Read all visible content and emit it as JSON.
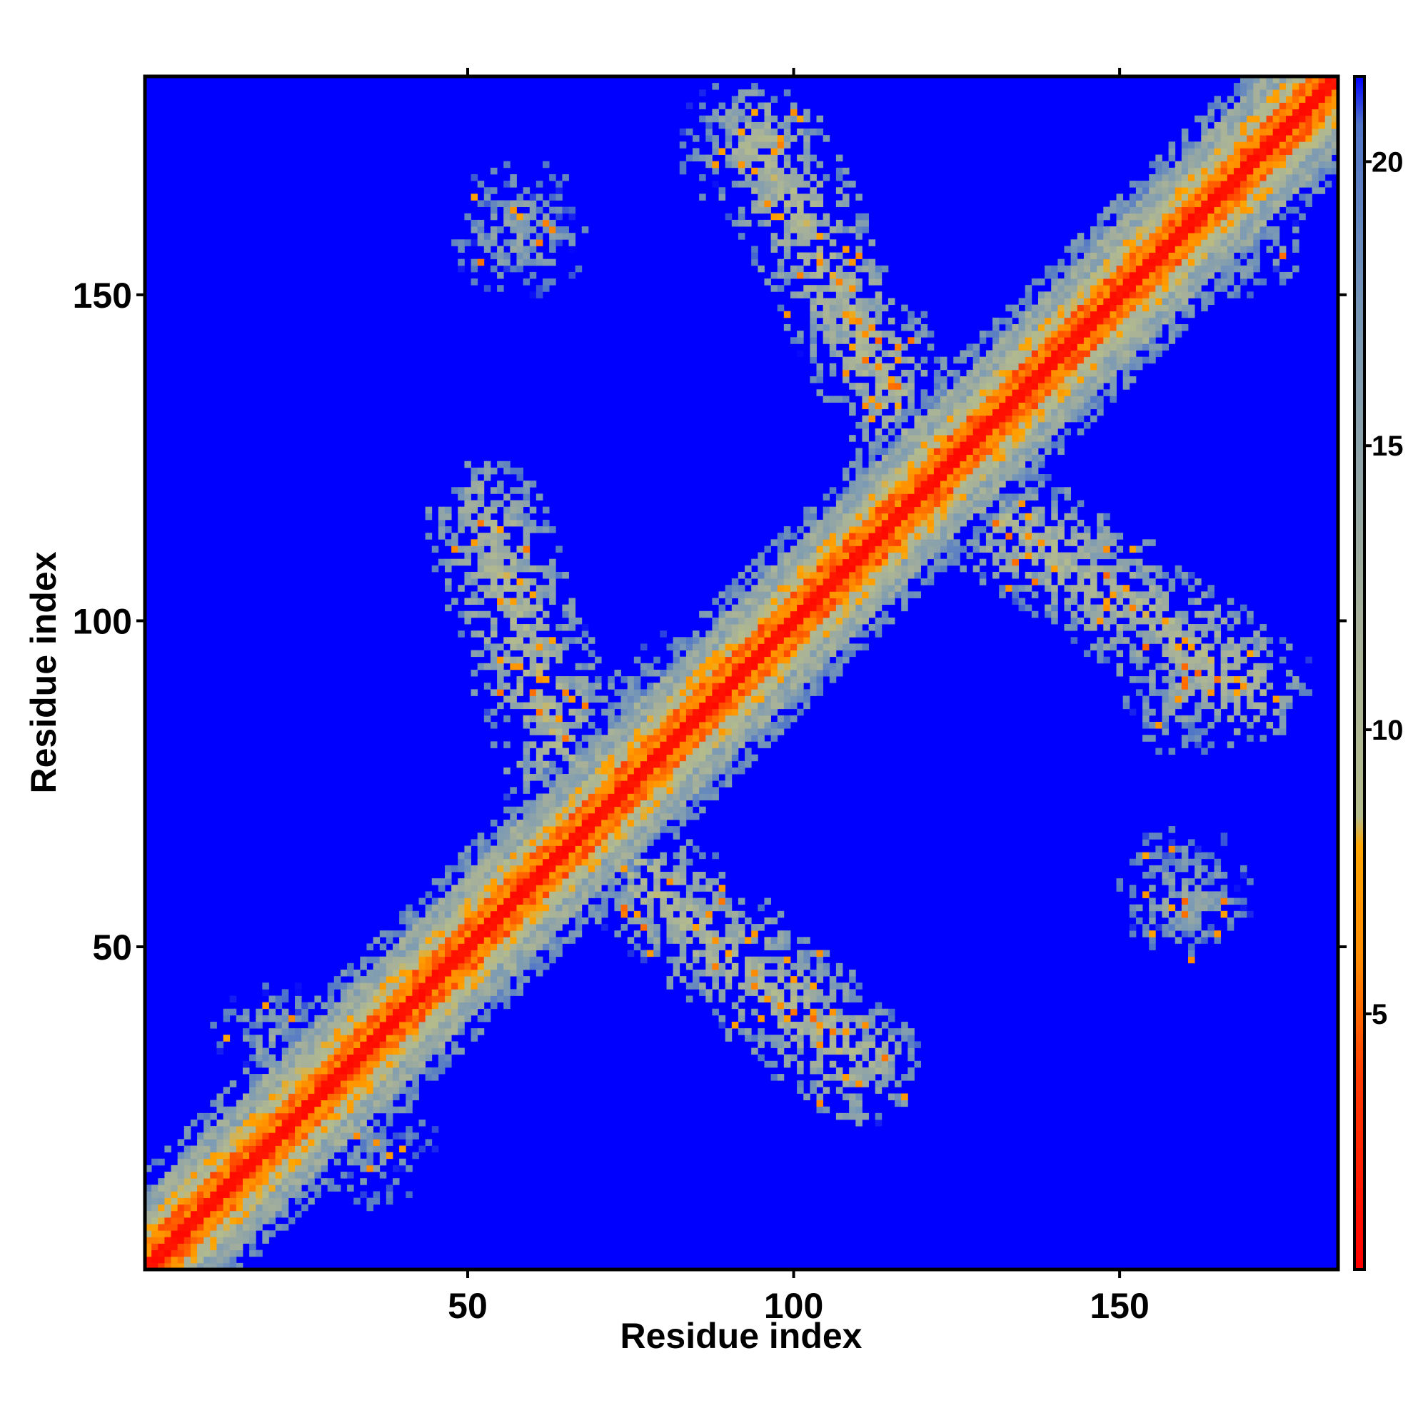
{
  "chart_data": {
    "type": "heatmap",
    "title": "",
    "xlabel": "Residue index",
    "ylabel": "Residue index",
    "n_residues": 183,
    "xlim": [
      1,
      183
    ],
    "ylim": [
      1,
      183
    ],
    "x_ticks": [
      50,
      100,
      150
    ],
    "y_ticks": [
      50,
      100,
      150
    ],
    "x_tick_labels": [
      "50",
      "100",
      "150"
    ],
    "y_tick_labels": [
      "50",
      "100",
      "150"
    ],
    "value_range": [
      0.5,
      21.5
    ],
    "colorbar": {
      "ticks": [
        5,
        10,
        15,
        20
      ],
      "tick_labels": [
        "5",
        "10",
        "15",
        "20"
      ],
      "range": [
        0.5,
        21.5
      ],
      "placement": "right"
    },
    "colorscale": [
      {
        "value": 0.5,
        "color": "#ff0000"
      },
      {
        "value": 4.0,
        "color": "#ff3a00"
      },
      {
        "value": 6.0,
        "color": "#ff8c00"
      },
      {
        "value": 8.0,
        "color": "#ffa500"
      },
      {
        "value": 9.0,
        "color": "#b4bc8c"
      },
      {
        "value": 12.0,
        "color": "#a6b09a"
      },
      {
        "value": 17.0,
        "color": "#7b9ab4"
      },
      {
        "value": 20.5,
        "color": "#4f75c8"
      },
      {
        "value": 21.5,
        "color": "#0000ff"
      }
    ],
    "background_value": 21.5,
    "background_color": "#0000ff",
    "diagonal_band": {
      "core_value": 1,
      "half_width_residues": 15
    },
    "contact_regions": [
      {
        "name": "antidiagonal-arm-1",
        "from": [
          53,
          115
        ],
        "to": [
          68,
          68
        ],
        "value": 11
      },
      {
        "name": "antidiagonal-arm-2",
        "from": [
          68,
          68
        ],
        "to": [
          110,
          32
        ],
        "value": 11
      },
      {
        "name": "antidiagonal-arm-3",
        "from": [
          95,
          173
        ],
        "to": [
          122,
          122
        ],
        "value": 11
      },
      {
        "name": "antidiagonal-arm-4",
        "from": [
          122,
          122
        ],
        "to": [
          170,
          90
        ],
        "value": 11
      },
      {
        "name": "cluster-a",
        "center": [
          58,
          160
        ],
        "value": 14
      },
      {
        "name": "cluster-b",
        "center": [
          93,
          173
        ],
        "value": 13
      },
      {
        "name": "cluster-c",
        "center": [
          160,
          58
        ],
        "value": 14
      },
      {
        "name": "cluster-d",
        "center": [
          168,
          160
        ],
        "value": 12
      },
      {
        "name": "cluster-e",
        "center": [
          82,
          88
        ],
        "value": 11
      },
      {
        "name": "cluster-f",
        "center": [
          20,
          35
        ],
        "value": 15
      },
      {
        "name": "cluster-g",
        "center": [
          35,
          20
        ],
        "value": 15
      },
      {
        "name": "cluster-h",
        "center": [
          160,
          90
        ],
        "value": 13
      }
    ],
    "grid": false,
    "legend": "colorbar-right"
  }
}
